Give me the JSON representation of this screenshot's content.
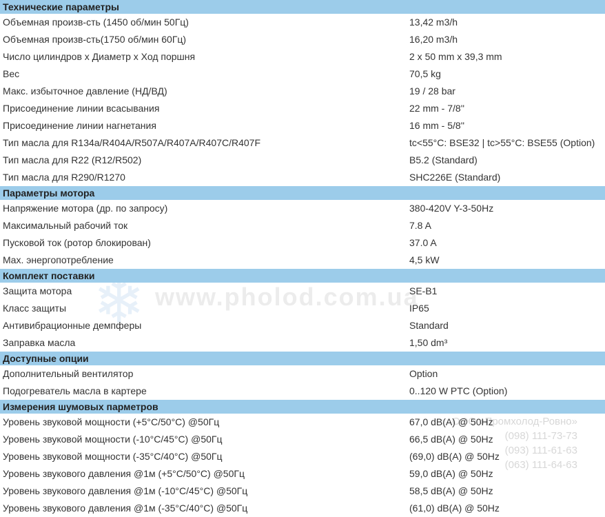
{
  "watermark": {
    "url": "www.pholod.com.ua",
    "company": "ООО «Промхолод-Ровно»",
    "phones": [
      "(098) 111-73-73",
      "(093) 111-61-63",
      "(063) 111-64-63"
    ]
  },
  "colors": {
    "header_bg": "#9cccea",
    "text": "#333333",
    "watermark": "rgba(150,150,150,0.18)"
  },
  "sections": [
    {
      "title": "Технические параметры",
      "rows": [
        {
          "label": "Объемная произв-сть (1450 об/мин 50Гц)",
          "value": "13,42 m3/h"
        },
        {
          "label": "Объемная произв-сть(1750 об/мин 60Гц)",
          "value": "16,20 m3/h"
        },
        {
          "label": "Число цилиндров x Диаметр x Ход поршня",
          "value": "2 x 50 mm x 39,3 mm"
        },
        {
          "label": "Вес",
          "value": "70,5 kg"
        },
        {
          "label": "Макс. избыточное давление (НД/ВД)",
          "value": "19 / 28 bar"
        },
        {
          "label": "Присоединение линии всасывания",
          "value": "22 mm - 7/8''"
        },
        {
          "label": "Присоединение линии нагнетания",
          "value": "16 mm - 5/8''"
        },
        {
          "label": "Тип масла для R134a/R404A/R507A/R407A/R407C/R407F",
          "value": "tc<55°C: BSE32 | tc>55°C: BSE55 (Option)"
        },
        {
          "label": "Тип масла для R22 (R12/R502)",
          "value": "B5.2 (Standard)"
        },
        {
          "label": "Тип масла для R290/R1270",
          "value": "SHC226E (Standard)"
        }
      ]
    },
    {
      "title": "Параметры мотора",
      "rows": [
        {
          "label": "Напряжение мотора (др. по запросу)",
          "value": "380-420V Y-3-50Hz"
        },
        {
          "label": "Максимальный рабочий ток",
          "value": "7.8 A"
        },
        {
          "label": "Пусковой ток (ротор блокирован)",
          "value": "37.0 A"
        },
        {
          "label": "Max. энергопотребление",
          "value": "4,5 kW"
        }
      ]
    },
    {
      "title": "Комплект поставки",
      "rows": [
        {
          "label": "Защита мотора",
          "value": "SE-B1"
        },
        {
          "label": "Класс защиты",
          "value": "IP65"
        },
        {
          "label": "Антивибрационные демпферы",
          "value": "Standard"
        },
        {
          "label": "Заправка масла",
          "value": "1,50 dm³"
        }
      ]
    },
    {
      "title": "Доступные опции",
      "rows": [
        {
          "label": "Дополнительный вентилятор",
          "value": "Option"
        },
        {
          "label": "Подогреватель масла в картере",
          "value": "0..120 W PTC (Option)"
        }
      ]
    },
    {
      "title": "Измерения шумовых парметров",
      "rows": [
        {
          "label": "Уровень звуковой мощности (+5°C/50°C) @50Гц",
          "value": "67,0 dB(A) @ 50Hz"
        },
        {
          "label": "Уровень звуковой мощности (-10°C/45°C) @50Гц",
          "value": "66,5 dB(A) @ 50Hz"
        },
        {
          "label": "Уровень звуковой мощности (-35°C/40°C) @50Гц",
          "value": "(69,0) dB(A) @ 50Hz"
        },
        {
          "label": "Уровень звукового давления @1м (+5°C/50°C) @50Гц",
          "value": "59,0 dB(A) @ 50Hz"
        },
        {
          "label": "Уровень звукового давления @1м (-10°C/45°C) @50Гц",
          "value": "58,5 dB(A) @ 50Hz"
        },
        {
          "label": "Уровень звукового давления @1м (-35°C/40°C) @50Гц",
          "value": "(61,0) dB(A) @ 50Hz"
        }
      ]
    }
  ]
}
